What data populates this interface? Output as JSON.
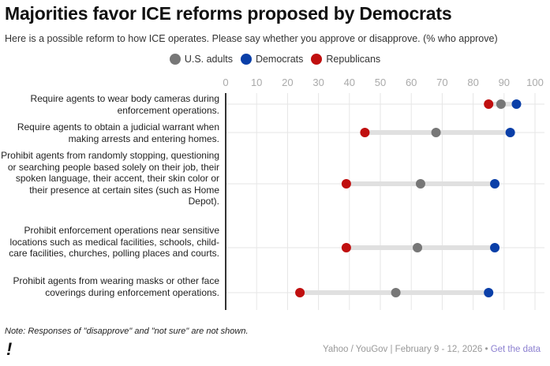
{
  "chart_data": {
    "type": "dot-range",
    "title": "Majorities favor ICE reforms proposed by Democrats",
    "subtitle": "Here is a possible reform to how ICE operates. Please say whether you approve or disapprove. (% who approve)",
    "xlim": [
      0,
      100
    ],
    "xticks": [
      "0",
      "10",
      "20",
      "30",
      "40",
      "50",
      "60",
      "70",
      "80",
      "90",
      "100"
    ],
    "grid": true,
    "legend_position": "top-center",
    "series": [
      {
        "name": "U.S. adults",
        "color": "#777777",
        "values": [
          89,
          68,
          63,
          62,
          55
        ]
      },
      {
        "name": "Democrats",
        "color": "#0a3fa8",
        "values": [
          94,
          92,
          87,
          87,
          85
        ]
      },
      {
        "name": "Republicans",
        "color": "#c00f0f",
        "values": [
          85,
          45,
          39,
          39,
          24
        ]
      }
    ],
    "categories": [
      "Require agents to wear body cameras during enforcement operations.",
      "Require agents to obtain a judicial warrant when making arrests and entering homes.",
      "Prohibit agents from randomly stopping, questioning or searching people based solely on their job, their spoken language, their accent, their skin color or their presence at certain sites (such as Home Depot).",
      "Prohibit enforcement operations near sensitive locations such as medical facilities, schools, child-care facilities, churches, polling places and courts.",
      "Prohibit agents from wearing masks or other face coverings during enforcement operations."
    ]
  },
  "footer": {
    "note": "Note: Responses of \"disapprove\" and \"not sure\" are not shown.",
    "source": "Yahoo / YouGov | February 9 - 12, 2026 •",
    "link": "Get the data",
    "logo": "!"
  }
}
